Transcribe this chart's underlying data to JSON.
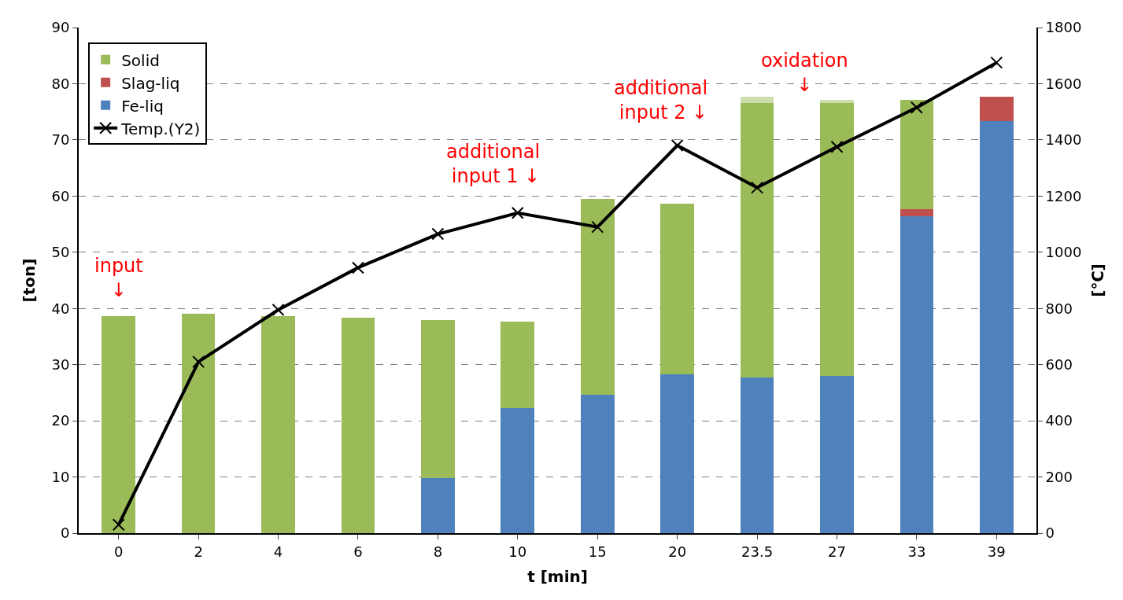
{
  "chart_data": {
    "type": "bar",
    "stacked": true,
    "xlabel": "t [min]",
    "ylabel": "[ton]",
    "y2label": "[℃]",
    "categories": [
      "0",
      "2",
      "4",
      "6",
      "8",
      "10",
      "15",
      "20",
      "23.5",
      "27",
      "33",
      "39"
    ],
    "series": [
      {
        "name": "Fe-liq",
        "color": "#4f81bd",
        "values": [
          0,
          0,
          0,
          0,
          9.8,
          22.3,
          24.7,
          28.3,
          27.7,
          28.0,
          56.4,
          73.4
        ]
      },
      {
        "name": "Slag-liq",
        "color": "#c0504d",
        "values": [
          0,
          0,
          0,
          0,
          0,
          0,
          0,
          0,
          0,
          0,
          1.3,
          4.3
        ]
      },
      {
        "name": "Solid",
        "color": "#9bbb59",
        "values": [
          38.6,
          39.0,
          38.6,
          38.3,
          28.2,
          15.4,
          34.8,
          30.3,
          48.8,
          48.5,
          19.4,
          0
        ]
      },
      {
        "color": "#cddeac",
        "values": [
          0,
          0,
          0,
          0,
          0,
          0,
          0,
          0,
          1.2,
          0.6,
          0,
          0
        ]
      },
      {
        "name": "Temp.(Y2)",
        "type": "line",
        "axis": "y2",
        "color": "#000000",
        "marker": "cross",
        "values": [
          30,
          610,
          795,
          945,
          1065,
          1140,
          1090,
          1380,
          1230,
          1375,
          1515,
          1675
        ]
      }
    ],
    "ylim": [
      0,
      90
    ],
    "yticks": [
      0,
      10,
      20,
      30,
      40,
      50,
      60,
      70,
      80,
      90
    ],
    "y2lim": [
      0,
      1800
    ],
    "y2ticks": [
      0,
      200,
      400,
      600,
      800,
      1000,
      1200,
      1400,
      1600,
      1800
    ],
    "grid": "y",
    "legend": "top left",
    "annotations": [
      "input\n↓",
      "additional\ninput 1 ↓",
      "additional\ninput 2 ↓",
      "oxidation\n↓"
    ]
  }
}
